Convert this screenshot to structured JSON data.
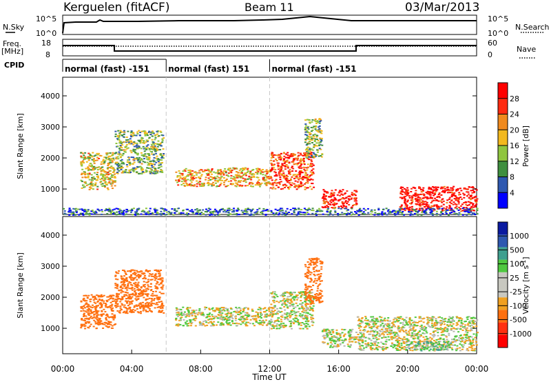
{
  "header": {
    "station": "Kerguelen (fitACF)",
    "beam": "Beam 11",
    "date": "03/Mar/2013"
  },
  "nsky_panel": {
    "left_label": "N.Sky",
    "right_label": "N.Search",
    "left_ticks": [
      "10^5",
      "10^0"
    ],
    "right_ticks": [
      "10^5",
      "10^0"
    ]
  },
  "freq_panel": {
    "left_label_1": "Freq.",
    "left_label_2": "[MHz]",
    "right_label": "Nave",
    "left_ticks": [
      "18",
      "8"
    ],
    "right_ticks": [
      "60",
      "0"
    ]
  },
  "cpid": {
    "label": "CPID",
    "segments": [
      {
        "start_hour": 0,
        "end_hour": 6,
        "text": "normal (fast) -151"
      },
      {
        "start_hour": 6,
        "end_hour": 12,
        "text": "normal (fast) 151"
      },
      {
        "start_hour": 12,
        "end_hour": 24,
        "text": "normal (fast) -151"
      }
    ]
  },
  "colors": {
    "power_scale": [
      "#0000ff",
      "#2e58b0",
      "#3f8f3f",
      "#8fc53f",
      "#f2b81e",
      "#f08a1e",
      "#ff2a10",
      "#ff0000"
    ],
    "velocity_scale": [
      "#0a1aa0",
      "#2e58b0",
      "#3f9f8f",
      "#4fc83f",
      "#c8c8c0",
      "#c8c8c0",
      "#f0a020",
      "#ff7010",
      "#ff3010",
      "#ff0000"
    ],
    "ground_scatter": "#b8b8b0"
  },
  "chart_data": [
    {
      "type": "heatmap",
      "name": "power",
      "xlabel": "",
      "ylabel": "Slant Range [km]",
      "xlim_hours": [
        0,
        24
      ],
      "ylim": [
        180,
        4600
      ],
      "y_ticks": [
        "1000",
        "2000",
        "3000",
        "4000"
      ],
      "colorbar": {
        "label": "Power [dB]",
        "ticks": [
          "4",
          "8",
          "12",
          "16",
          "20",
          "24",
          "28"
        ],
        "range": [
          0,
          30
        ]
      },
      "echo_regions": [
        {
          "t0": 1.0,
          "t1": 3.0,
          "r0": 1000,
          "r1": 2200,
          "level": 16
        },
        {
          "t0": 3.0,
          "t1": 5.8,
          "r0": 1500,
          "r1": 2900,
          "level": 12
        },
        {
          "t0": 6.5,
          "t1": 12.0,
          "r0": 1100,
          "r1": 1700,
          "level": 18
        },
        {
          "t0": 12.0,
          "t1": 14.5,
          "r0": 1000,
          "r1": 2200,
          "level": 24
        },
        {
          "t0": 14.0,
          "t1": 15.0,
          "r0": 2000,
          "r1": 3300,
          "level": 12
        },
        {
          "t0": 15.0,
          "t1": 17.0,
          "r0": 400,
          "r1": 1000,
          "level": 28
        },
        {
          "t0": 19.5,
          "t1": 24.0,
          "r0": 300,
          "r1": 1100,
          "level": 28
        },
        {
          "t0": 0.0,
          "t1": 24.0,
          "r0": 180,
          "r1": 400,
          "level": 6
        }
      ]
    },
    {
      "type": "heatmap",
      "name": "velocity",
      "xlabel": "Time UT",
      "ylabel": "Slant Range [km]",
      "xlim_hours": [
        0,
        24
      ],
      "x_ticks": [
        "00:00",
        "04:00",
        "08:00",
        "12:00",
        "16:00",
        "20:00",
        "00:00"
      ],
      "ylim": [
        180,
        4600
      ],
      "y_ticks": [
        "1000",
        "2000",
        "3000",
        "4000"
      ],
      "colorbar": {
        "label": "Velocity [m s^-1]",
        "ticks": [
          "1000",
          "500",
          "100",
          "25",
          "-25",
          "-100",
          "-500",
          "-1000"
        ],
        "range": [
          -1200,
          1200
        ]
      },
      "echo_regions": [
        {
          "t0": 1.0,
          "t1": 3.0,
          "r0": 1000,
          "r1": 2100,
          "velocity": -300
        },
        {
          "t0": 3.0,
          "t1": 5.8,
          "r0": 1500,
          "r1": 2900,
          "velocity": -250
        },
        {
          "t0": 6.5,
          "t1": 12.0,
          "r0": 1100,
          "r1": 1700,
          "velocity": 0
        },
        {
          "t0": 12.0,
          "t1": 14.5,
          "r0": 1000,
          "r1": 2200,
          "velocity": 0
        },
        {
          "t0": 14.0,
          "t1": 15.0,
          "r0": 1800,
          "r1": 3300,
          "velocity": -300
        },
        {
          "t0": 15.0,
          "t1": 17.0,
          "r0": 400,
          "r1": 1000,
          "velocity": 0
        },
        {
          "t0": 17.0,
          "t1": 24.0,
          "r0": 300,
          "r1": 1400,
          "velocity": 0
        },
        {
          "t0": 20.0,
          "t1": 22.5,
          "r0": 300,
          "r1": 600,
          "velocity": 80
        }
      ]
    }
  ]
}
